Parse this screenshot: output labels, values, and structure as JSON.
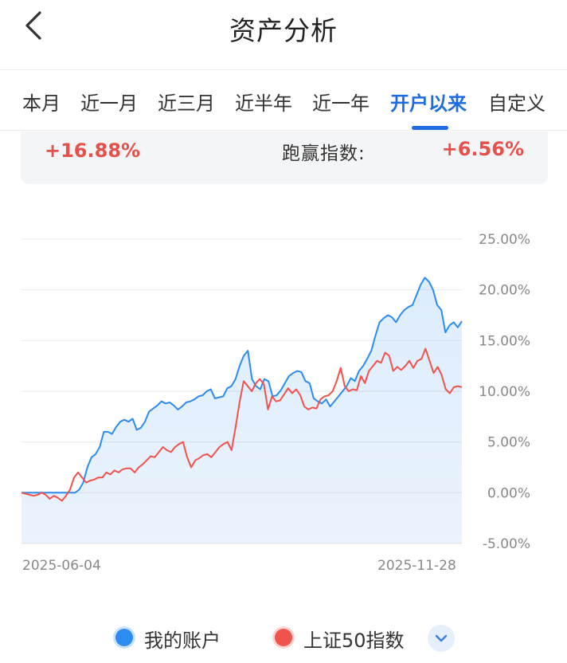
{
  "header": {
    "title": "资产分析",
    "back_icon": "chevron-left-icon"
  },
  "tabs": [
    {
      "label": "本月",
      "active": false
    },
    {
      "label": "近一月",
      "active": false
    },
    {
      "label": "近三月",
      "active": false
    },
    {
      "label": "近半年",
      "active": false
    },
    {
      "label": "近一年",
      "active": false
    },
    {
      "label": "开户以来",
      "active": true
    },
    {
      "label": "自定义",
      "active": false
    }
  ],
  "summary": {
    "return_value": "+16.88%",
    "beat_index_label": "跑赢指数:",
    "beat_index_value": "+6.56%"
  },
  "colors": {
    "accent": "#1f6be0",
    "up": "#e8504a",
    "account_line": "#2c8cf0",
    "index_line": "#f0524c"
  },
  "chart_data": {
    "type": "line",
    "x_start": "2025-06-04",
    "x_end": "2025-11-28",
    "y_ticks": [
      "25.00%",
      "20.00%",
      "15.00%",
      "10.00%",
      "5.00%",
      "0.00%",
      "-5.00%"
    ],
    "ylim": [
      -5,
      25
    ],
    "grid": true,
    "series": [
      {
        "name": "我的账户",
        "color": "#2c8cf0",
        "area": true,
        "values": [
          0,
          0,
          0,
          0,
          0,
          0,
          0,
          0,
          0,
          0,
          0,
          0,
          0,
          0,
          0.3,
          1.0,
          2.5,
          3.5,
          3.8,
          4.5,
          6.0,
          6.0,
          5.8,
          6.5,
          7.0,
          7.2,
          7.0,
          7.3,
          6.2,
          6.4,
          7.0,
          8.0,
          8.3,
          8.6,
          9.0,
          8.8,
          8.9,
          8.6,
          8.2,
          8.5,
          8.9,
          9.0,
          9.2,
          9.5,
          9.6,
          10.0,
          10.2,
          9.3,
          9.4,
          9.5,
          10.3,
          10.5,
          11.2,
          12.5,
          13.5,
          14.0,
          11.2,
          10.5,
          10.2,
          11.2,
          11.0,
          9.5,
          9.6,
          10.1,
          10.8,
          11.5,
          11.8,
          12.0,
          11.9,
          11.0,
          10.8,
          9.3,
          9.0,
          8.8,
          9.2,
          8.5,
          9.0,
          9.5,
          10.0,
          10.5,
          11.3,
          11.0,
          12.0,
          12.5,
          13.2,
          14.0,
          15.5,
          16.8,
          17.2,
          17.5,
          17.3,
          16.8,
          17.5,
          18.0,
          18.3,
          18.5,
          19.5,
          20.5,
          21.2,
          20.8,
          20.0,
          18.5,
          18.0,
          15.8,
          16.5,
          16.8,
          16.3,
          16.9
        ]
      },
      {
        "name": "上证50指数",
        "color": "#f0524c",
        "area": false,
        "values": [
          0,
          -0.1,
          -0.2,
          -0.3,
          -0.2,
          0,
          -0.2,
          -0.6,
          -0.3,
          -0.5,
          -0.8,
          -0.3,
          0.3,
          1.5,
          2.0,
          1.5,
          1.0,
          1.2,
          1.3,
          1.5,
          1.5,
          2.0,
          1.8,
          2.2,
          2.0,
          2.3,
          2.4,
          2.4,
          2.0,
          2.5,
          2.8,
          3.2,
          3.6,
          3.5,
          4.0,
          4.5,
          4.2,
          4.0,
          4.5,
          4.8,
          5.0,
          3.5,
          2.5,
          3.2,
          3.4,
          3.7,
          3.8,
          3.5,
          4.0,
          4.5,
          4.8,
          5.0,
          4.2,
          6.5,
          9.0,
          11.0,
          10.5,
          10.0,
          10.8,
          11.2,
          10.7,
          8.2,
          9.5,
          9.0,
          9.1,
          9.7,
          10.3,
          9.8,
          10.2,
          9.6,
          8.5,
          8.2,
          8.4,
          8.3,
          9.2,
          9.5,
          9.6,
          10.0,
          11.0,
          12.3,
          10.5,
          10.0,
          10.2,
          10.1,
          11.5,
          10.8,
          12.0,
          12.5,
          13.0,
          12.8,
          13.8,
          13.5,
          12.0,
          12.4,
          12.1,
          12.5,
          13.0,
          12.3,
          13.0,
          13.2,
          14.2,
          13.0,
          11.8,
          12.4,
          11.6,
          10.2,
          9.8,
          10.4,
          10.5,
          10.4
        ]
      }
    ]
  },
  "legend": {
    "expand_icon": "chevron-down-icon"
  }
}
